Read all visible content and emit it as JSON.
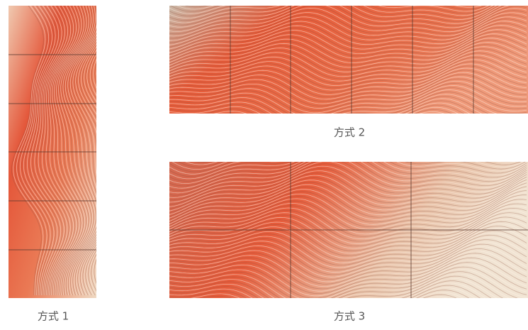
{
  "labels": [
    "方式 1",
    "方式 2",
    "方式 3"
  ]
}
